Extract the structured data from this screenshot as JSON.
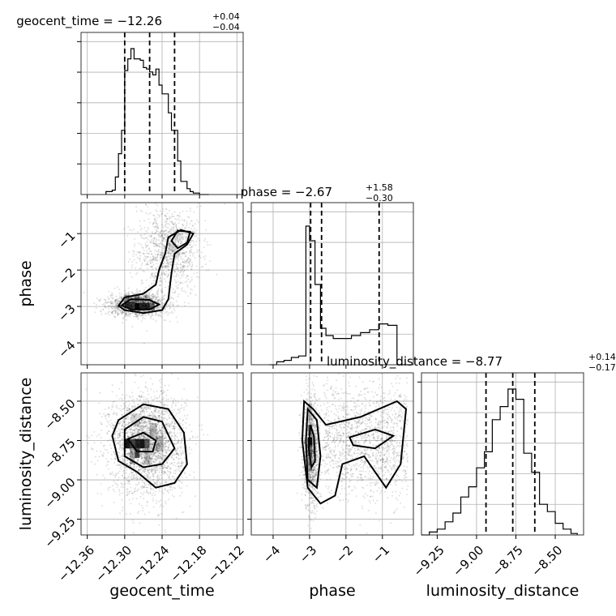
{
  "chart_data": {
    "type": "corner",
    "parameters": [
      "geocent_time",
      "phase",
      "luminosity_distance"
    ],
    "titles": [
      {
        "label": "geocent_time = −12.26",
        "plus": "+0.04",
        "minus": "−0.04"
      },
      {
        "label": "phase = −2.67",
        "plus": "+1.58",
        "minus": "−0.30"
      },
      {
        "label": "luminosity_distance = −8.77",
        "plus": "+0.14",
        "minus": "−0.17"
      }
    ],
    "ranges": {
      "geocent_time": [
        -12.37,
        -12.11
      ],
      "phase": [
        -4.6,
        -0.15
      ],
      "luminosity_distance": [
        -9.35,
        -8.32
      ]
    },
    "ticks": {
      "geocent_time": [
        -12.36,
        -12.3,
        -12.24,
        -12.18,
        -12.12
      ],
      "phase": [
        -4,
        -3,
        -2,
        -1
      ],
      "luminosity_distance": [
        -9.25,
        -9.0,
        -8.75,
        -8.5
      ]
    },
    "tick_labels": {
      "geocent_time": [
        "−12.36",
        "−12.30",
        "−12.24",
        "−12.18",
        "−12.12"
      ],
      "phase": [
        "−4",
        "−3",
        "−2",
        "−1"
      ],
      "luminosity_distance": [
        "−9.25",
        "−9.00",
        "−8.75",
        "−8.50"
      ]
    },
    "quantiles": {
      "geocent_time": [
        -12.3,
        -12.26,
        -12.22
      ],
      "phase": [
        -2.97,
        -2.67,
        -1.09
      ],
      "luminosity_distance": [
        -8.94,
        -8.77,
        -8.63
      ]
    },
    "histograms": {
      "geocent_time": {
        "edges": [
          -12.33,
          -12.32,
          -12.315,
          -12.31,
          -12.305,
          -12.3,
          -12.295,
          -12.29,
          -12.285,
          -12.28,
          -12.275,
          -12.27,
          -12.265,
          -12.26,
          -12.255,
          -12.25,
          -12.245,
          -12.24,
          -12.235,
          -12.23,
          -12.225,
          -12.22,
          -12.215,
          -12.21,
          -12.205,
          -12.2,
          -12.195,
          -12.19,
          -12.185,
          -12.18,
          -12.175,
          -12.17,
          -12.165
        ],
        "counts": [
          0.02,
          0.03,
          0.12,
          0.28,
          0.44,
          0.85,
          0.93,
          1.0,
          0.93,
          0.93,
          0.92,
          0.87,
          0.86,
          0.84,
          0.82,
          0.86,
          0.75,
          0.69,
          0.69,
          0.56,
          0.44,
          0.44,
          0.23,
          0.09,
          0.09,
          0.04,
          0.02,
          0.01,
          0.01,
          0.0,
          0.0,
          0.0
        ]
      },
      "phase": {
        "edges": [
          -4.1,
          -3.9,
          -3.7,
          -3.5,
          -3.3,
          -3.1,
          -3.0,
          -2.85,
          -2.7,
          -2.55,
          -2.35,
          -2.1,
          -1.85,
          -1.6,
          -1.35,
          -1.1,
          -0.85,
          -0.6,
          -0.3
        ],
        "counts": [
          0.0,
          0.02,
          0.03,
          0.05,
          0.06,
          0.95,
          0.85,
          0.55,
          0.25,
          0.2,
          0.18,
          0.18,
          0.2,
          0.22,
          0.24,
          0.28,
          0.27,
          0.0
        ]
      },
      "luminosity_distance": {
        "edges": [
          -9.35,
          -9.3,
          -9.25,
          -9.2,
          -9.15,
          -9.1,
          -9.05,
          -9.0,
          -8.95,
          -8.9,
          -8.85,
          -8.8,
          -8.75,
          -8.7,
          -8.65,
          -8.6,
          -8.55,
          -8.5,
          -8.45,
          -8.4,
          -8.36
        ],
        "counts": [
          0.0,
          0.02,
          0.04,
          0.09,
          0.15,
          0.26,
          0.33,
          0.46,
          0.57,
          0.79,
          0.88,
          1.0,
          0.93,
          0.56,
          0.43,
          0.21,
          0.16,
          0.08,
          0.04,
          0.01
        ]
      }
    },
    "grid": true,
    "style": {
      "line_color": "#000000",
      "grid_color": "#b0b0b0",
      "density_color": "#000000"
    }
  }
}
